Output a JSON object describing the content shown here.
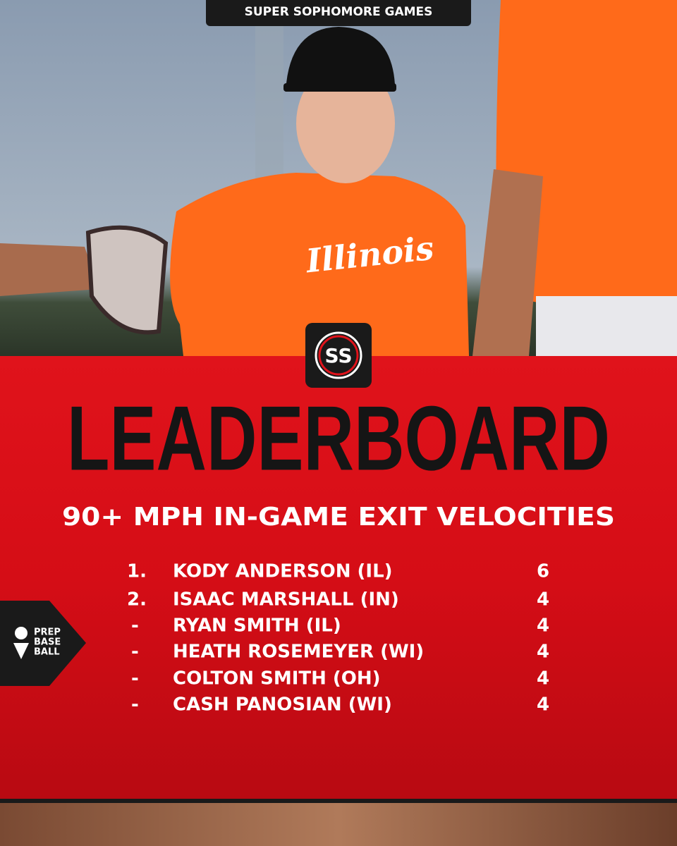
{
  "header": {
    "event": "SUPER SOPHOMORE GAMES",
    "event_logo": "SS",
    "jersey": "Illinois"
  },
  "title": "LEADERBOARD",
  "subtitle": "90+ MPH IN-GAME EXIT VELOCITIES",
  "table": {
    "rows": [
      [
        "1.",
        "KODY ANDERSON (IL)",
        6
      ],
      [
        "2.",
        "ISAAC MARSHALL (IN)",
        4
      ],
      [
        "-",
        "RYAN SMITH (IL)",
        4
      ],
      [
        "-",
        "HEATH ROSEMEYER (WI)",
        4
      ],
      [
        "-",
        "COLTON SMITH (OH)",
        4
      ],
      [
        "-",
        "CASH PANOSIAN (WI)",
        4
      ]
    ]
  },
  "brand": {
    "lines": [
      "PREP",
      "BASE",
      "BALL"
    ]
  }
}
